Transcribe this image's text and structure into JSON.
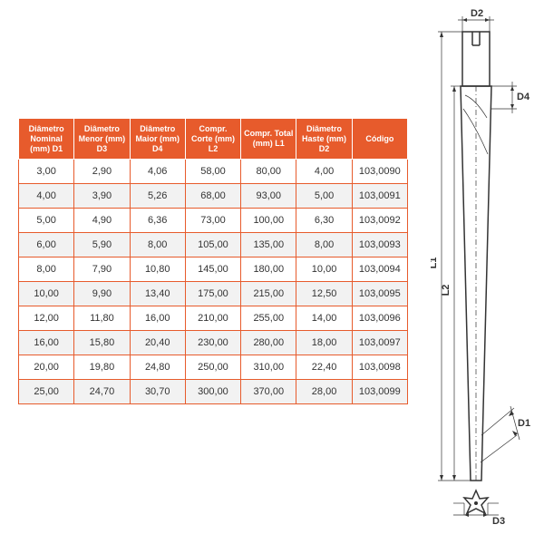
{
  "table": {
    "header_bg": "#e75b2c",
    "header_fg": "#ffffff",
    "border_color": "#e75b2c",
    "alt_row_bg": "#f2f2f2",
    "columns": [
      "Diâmetro Nominal (mm) D1",
      "Diâmetro Menor (mm) D3",
      "Diâmetro Maior (mm) D4",
      "Compr. Corte (mm) L2",
      "Compr. Total (mm) L1",
      "Diâmetro Haste (mm) D2",
      "Código"
    ],
    "rows": [
      [
        "3,00",
        "2,90",
        "4,06",
        "58,00",
        "80,00",
        "4,00",
        "103,0090"
      ],
      [
        "4,00",
        "3,90",
        "5,26",
        "68,00",
        "93,00",
        "5,00",
        "103,0091"
      ],
      [
        "5,00",
        "4,90",
        "6,36",
        "73,00",
        "100,00",
        "6,30",
        "103,0092"
      ],
      [
        "6,00",
        "5,90",
        "8,00",
        "105,00",
        "135,00",
        "8,00",
        "103,0093"
      ],
      [
        "8,00",
        "7,90",
        "10,80",
        "145,00",
        "180,00",
        "10,00",
        "103,0094"
      ],
      [
        "10,00",
        "9,90",
        "13,40",
        "175,00",
        "215,00",
        "12,50",
        "103,0095"
      ],
      [
        "12,00",
        "11,80",
        "16,00",
        "210,00",
        "255,00",
        "14,00",
        "103,0096"
      ],
      [
        "16,00",
        "15,80",
        "20,40",
        "230,00",
        "280,00",
        "18,00",
        "103,0097"
      ],
      [
        "20,00",
        "19,80",
        "24,80",
        "250,00",
        "310,00",
        "22,40",
        "103,0098"
      ],
      [
        "25,00",
        "24,70",
        "30,70",
        "300,00",
        "370,00",
        "28,00",
        "103,0099"
      ]
    ]
  },
  "diagram": {
    "labels": {
      "d1": "D1",
      "d2": "D2",
      "d3": "D3",
      "d4": "D4",
      "l1": "L1",
      "l2": "L2"
    }
  }
}
